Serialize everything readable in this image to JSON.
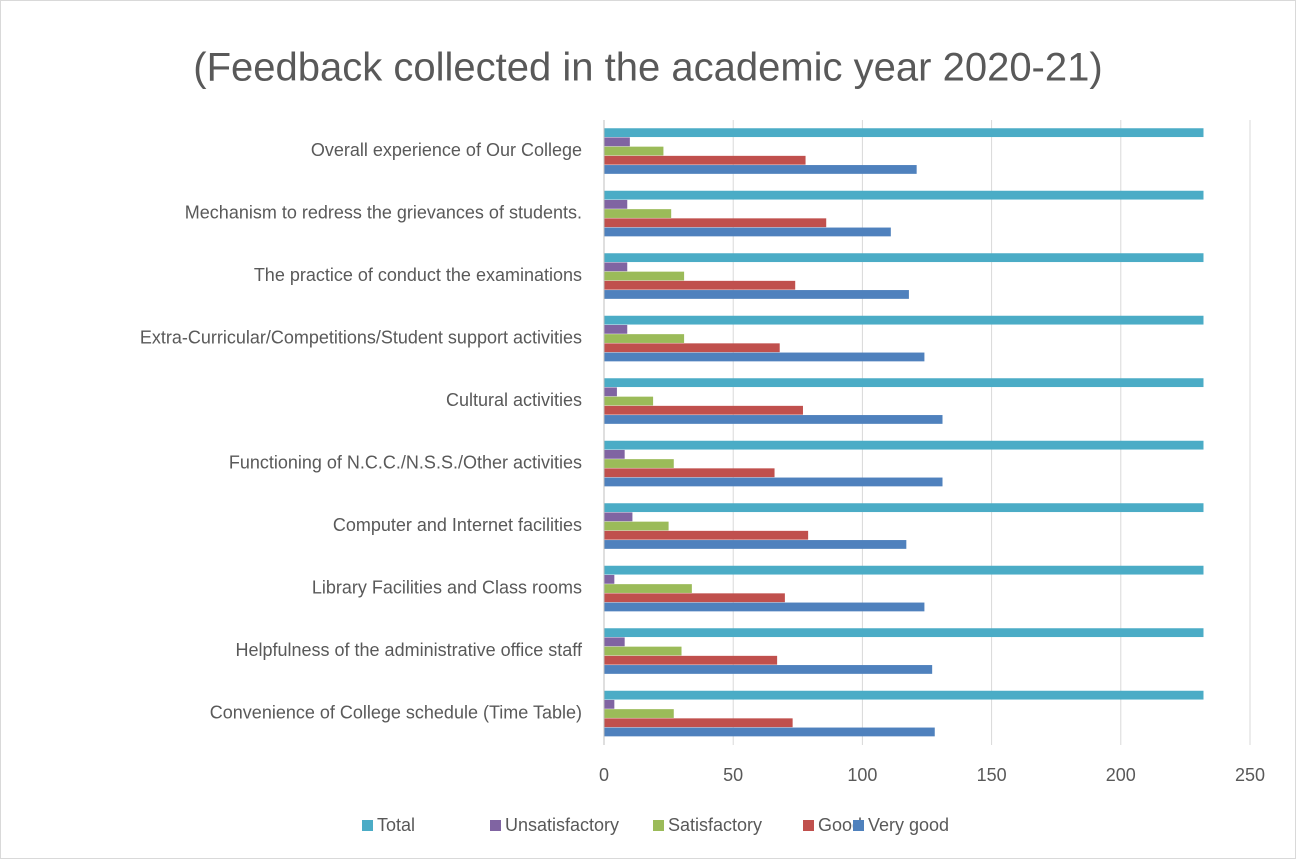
{
  "chart_data": {
    "type": "barh",
    "title": "(Feedback collected in the academic year 2020-21)",
    "categories": [
      "Overall experience of  Our College",
      "Mechanism to redress the grievances of students.",
      "The practice of conduct the examinations",
      "Extra-Curricular/Competitions/Student support activities",
      "Cultural activities",
      "Functioning of N.C.C./N.S.S./Other activities",
      "Computer and Internet facilities",
      "Library Facilities and Class rooms",
      "Helpfulness of the administrative office staff",
      "Convenience of College schedule (Time Table)"
    ],
    "series": [
      {
        "name": "Total",
        "color": "#4bacc6",
        "values": [
          232,
          232,
          232,
          232,
          232,
          232,
          232,
          232,
          232,
          232
        ]
      },
      {
        "name": "Unsatisfactory",
        "color": "#8064a2",
        "values": [
          10,
          9,
          9,
          9,
          5,
          8,
          11,
          4,
          8,
          4
        ]
      },
      {
        "name": "Satisfactory",
        "color": "#9bbb59",
        "values": [
          23,
          26,
          31,
          31,
          19,
          27,
          25,
          34,
          30,
          27
        ]
      },
      {
        "name": "Good",
        "color": "#c0504d",
        "values": [
          78,
          86,
          74,
          68,
          77,
          66,
          79,
          70,
          67,
          73
        ]
      },
      {
        "name": "Very good",
        "color": "#4f81bd",
        "values": [
          121,
          111,
          118,
          124,
          131,
          131,
          117,
          124,
          127,
          128
        ]
      }
    ],
    "xlim": [
      0,
      250
    ],
    "xticks": [
      0,
      50,
      100,
      150,
      200,
      250
    ],
    "grid": true,
    "legend": "bottom"
  }
}
